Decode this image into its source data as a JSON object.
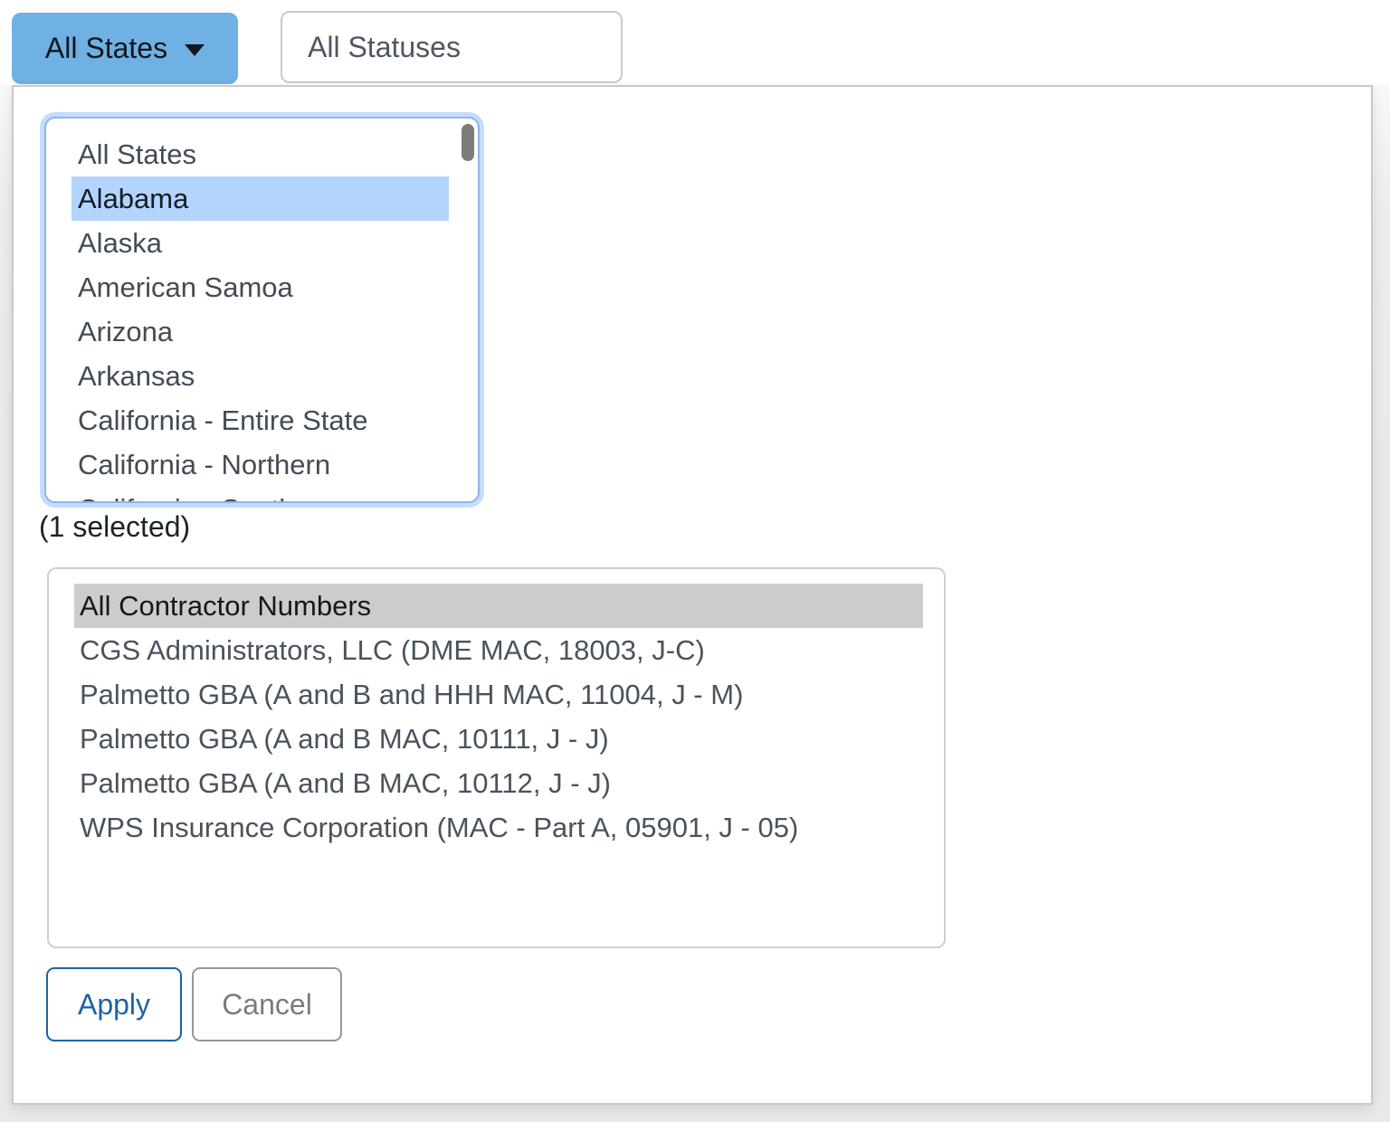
{
  "filters": {
    "states_button": {
      "label": "All States"
    },
    "statuses_input": {
      "value": "All Statuses"
    }
  },
  "states_panel": {
    "options": [
      "All States",
      "Alabama",
      "Alaska",
      "American Samoa",
      "Arizona",
      "Arkansas",
      "California - Entire State",
      "California - Northern",
      "California - Southern"
    ],
    "selected_option": "Alabama",
    "selected_count_label": "(1 selected)"
  },
  "contractors_panel": {
    "options": [
      "All Contractor Numbers",
      "CGS Administrators, LLC (DME MAC, 18003, J-C)",
      "Palmetto GBA (A and B and HHH MAC, 11004, J - M)",
      "Palmetto GBA (A and B MAC, 10111, J - J)",
      "Palmetto GBA (A and B MAC, 10112, J - J)",
      "WPS Insurance Corporation (MAC - Part A, 05901, J - 05)"
    ],
    "selected_option": "All Contractor Numbers"
  },
  "actions": {
    "apply_label": "Apply",
    "cancel_label": "Cancel"
  },
  "colors": {
    "states_button_bg": "#6fb1e3",
    "state_selected_bg": "#b3d4fc",
    "contractor_selected_bg": "#cccccc",
    "focus_ring": "#c5dcfb",
    "listbox_focus_border": "#8ab5f0",
    "apply_blue": "#1b64a7",
    "cancel_gray": "#787c81",
    "backdrop_gray": "#e9e9ea"
  }
}
